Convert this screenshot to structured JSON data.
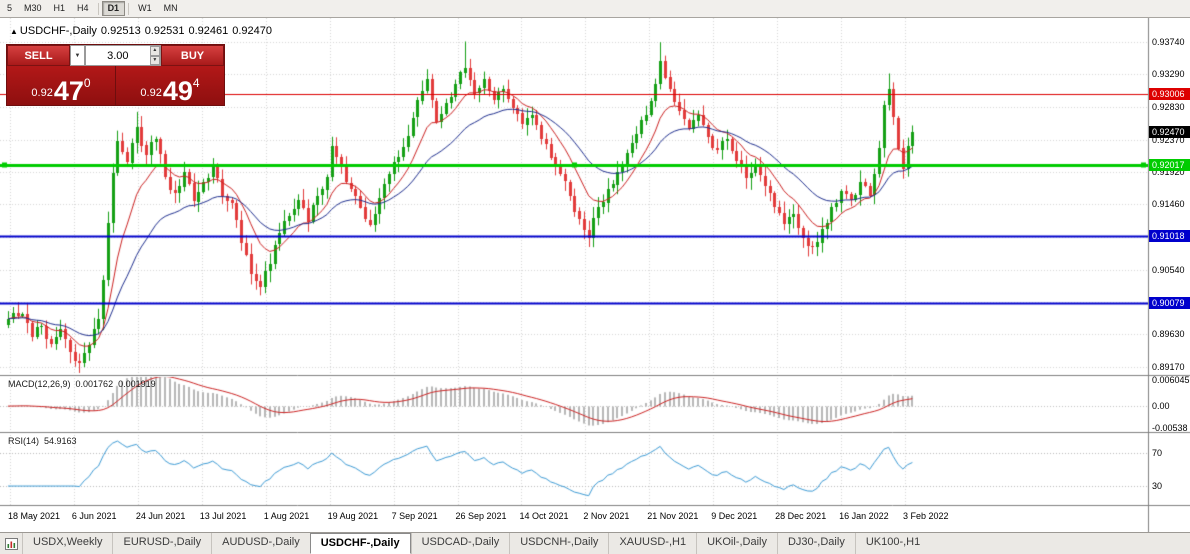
{
  "toolbar": {
    "buttons": [
      {
        "label": "5",
        "active": false
      },
      {
        "label": "M30",
        "active": false
      },
      {
        "label": "H1",
        "active": false
      },
      {
        "label": "H4",
        "active": false
      },
      {
        "label": "D1",
        "active": true
      },
      {
        "label": "W1",
        "active": false
      },
      {
        "label": "MN",
        "active": false
      }
    ]
  },
  "icons": {
    "title_marker": "▲",
    "dropdown": "▼",
    "spin_up": "▲",
    "spin_down": "▼"
  },
  "chart": {
    "title": {
      "symbol": "USDCHF-,Daily",
      "open": "0.92513",
      "high": "0.92531",
      "low": "0.92461",
      "close": "0.92470"
    },
    "trade_panel": {
      "sell_label": "SELL",
      "buy_label": "BUY",
      "volume": "3.00",
      "bid_base": "0.92",
      "bid_big": "47",
      "bid_sup": "0",
      "ask_base": "0.92",
      "ask_big": "49",
      "ask_sup": "4"
    },
    "price_axis": {
      "labels": [
        {
          "text": "0.93740",
          "value": 0.9374
        },
        {
          "text": "0.93290",
          "value": 0.9329
        },
        {
          "text": "0.92830",
          "value": 0.9283
        },
        {
          "text": "0.92370",
          "value": 0.9237
        },
        {
          "text": "0.91920",
          "value": 0.9192
        },
        {
          "text": "0.91460",
          "value": 0.9146
        },
        {
          "text": "0.90540",
          "value": 0.9054
        },
        {
          "text": "0.89630",
          "value": 0.8963
        },
        {
          "text": "0.89170",
          "value": 0.8917
        }
      ]
    },
    "levels": [
      {
        "text": "0.93006",
        "value": 0.93006,
        "color": "#dd0000",
        "width": 1,
        "selected": false
      },
      {
        "text": "0.92017",
        "value": 0.92017,
        "color": "#00cc00",
        "width": 3,
        "selected": true
      },
      {
        "text": "0.91018",
        "value": 0.91018,
        "color": "#0000cc",
        "width": 2,
        "selected": false
      },
      {
        "text": "0.90079",
        "value": 0.90079,
        "color": "#0000cc",
        "width": 2,
        "selected": false
      }
    ],
    "current_price": {
      "text": "0.92470",
      "value": 0.9247,
      "color": "#000000"
    }
  },
  "indicators": {
    "macd": {
      "label": "MACD(12,26,9)",
      "value_main": "0.001762",
      "value_signal": "0.001919",
      "axis": [
        {
          "text": "0.006045",
          "value": 0.006045
        },
        {
          "text": "0.00",
          "value": 0
        },
        {
          "text": "-0.00538",
          "value": -0.00538
        }
      ]
    },
    "rsi": {
      "label": "RSI(14)",
      "value": "54.9163",
      "axis": [
        {
          "text": "70",
          "value": 70
        },
        {
          "text": "30",
          "value": 30
        }
      ],
      "levels": [
        70,
        30
      ]
    }
  },
  "x_axis": {
    "dates": [
      "18 May 2021",
      "6 Jun 2021",
      "24 Jun 2021",
      "13 Jul 2021",
      "1 Aug 2021",
      "19 Aug 2021",
      "7 Sep 2021",
      "26 Sep 2021",
      "14 Oct 2021",
      "2 Nov 2021",
      "21 Nov 2021",
      "9 Dec 2021",
      "28 Dec 2021",
      "16 Jan 2022",
      "3 Feb 2022"
    ]
  },
  "tabs": {
    "items": [
      {
        "label": "USDX,Weekly",
        "active": false
      },
      {
        "label": "EURUSD-,Daily",
        "active": false
      },
      {
        "label": "AUDUSD-,Daily",
        "active": false
      },
      {
        "label": "USDCHF-,Daily",
        "active": true
      },
      {
        "label": "USDCAD-,Daily",
        "active": false
      },
      {
        "label": "USDCNH-,Daily",
        "active": false
      },
      {
        "label": "XAUUSD-,H1",
        "active": false
      },
      {
        "label": "UKOil-,Daily",
        "active": false
      },
      {
        "label": "DJ30-,Daily",
        "active": false
      },
      {
        "label": "UK100-,H1",
        "active": false
      }
    ]
  },
  "chart_data": {
    "type": "candlestick",
    "symbol": "USDCHF-",
    "timeframe": "Daily",
    "n_candles": 191,
    "seed": 20220203,
    "price_range": [
      0.8906,
      0.9408
    ],
    "macd_range": [
      -0.00538,
      0.006045
    ],
    "grid_prices": [
      0.9374,
      0.9329,
      0.9283,
      0.9237,
      0.9192,
      0.9146,
      0.91,
      0.9054,
      0.9008,
      0.8963,
      0.8917
    ],
    "colors": {
      "up": "#15a015",
      "down": "#e23b3b",
      "ma_fast": "#cc2222",
      "ma_slow": "#1f2f8f",
      "macd_hist": "#b8b8b8",
      "macd_signal": "#cc2222",
      "rsi_line": "#3d9bd5",
      "grid": "#d6d6d6"
    },
    "anchors": [
      [
        0,
        0.8985
      ],
      [
        3,
        0.8992
      ],
      [
        5,
        0.896
      ],
      [
        7,
        0.8975
      ],
      [
        9,
        0.895
      ],
      [
        11,
        0.897
      ],
      [
        13,
        0.8938
      ],
      [
        15,
        0.8922
      ],
      [
        17,
        0.8948
      ],
      [
        19,
        0.8985
      ],
      [
        20,
        0.904
      ],
      [
        21,
        0.912
      ],
      [
        22,
        0.919
      ],
      [
        23,
        0.9235
      ],
      [
        25,
        0.9205
      ],
      [
        27,
        0.9255
      ],
      [
        29,
        0.9215
      ],
      [
        31,
        0.9238
      ],
      [
        33,
        0.9185
      ],
      [
        35,
        0.9162
      ],
      [
        37,
        0.9192
      ],
      [
        39,
        0.915
      ],
      [
        41,
        0.9178
      ],
      [
        43,
        0.9198
      ],
      [
        45,
        0.9158
      ],
      [
        47,
        0.9148
      ],
      [
        49,
        0.9092
      ],
      [
        51,
        0.9048
      ],
      [
        53,
        0.903
      ],
      [
        55,
        0.9062
      ],
      [
        57,
        0.9105
      ],
      [
        59,
        0.913
      ],
      [
        61,
        0.9152
      ],
      [
        63,
        0.9122
      ],
      [
        65,
        0.9158
      ],
      [
        67,
        0.9185
      ],
      [
        68,
        0.9228
      ],
      [
        70,
        0.9198
      ],
      [
        72,
        0.9168
      ],
      [
        74,
        0.9142
      ],
      [
        76,
        0.9118
      ],
      [
        78,
        0.9155
      ],
      [
        80,
        0.9188
      ],
      [
        82,
        0.9212
      ],
      [
        84,
        0.9242
      ],
      [
        86,
        0.9292
      ],
      [
        88,
        0.9322
      ],
      [
        90,
        0.9262
      ],
      [
        92,
        0.9288
      ],
      [
        94,
        0.9315
      ],
      [
        96,
        0.9338
      ],
      [
        98,
        0.9302
      ],
      [
        100,
        0.9322
      ],
      [
        102,
        0.9292
      ],
      [
        104,
        0.9308
      ],
      [
        106,
        0.9282
      ],
      [
        108,
        0.9258
      ],
      [
        110,
        0.9272
      ],
      [
        112,
        0.9238
      ],
      [
        114,
        0.9212
      ],
      [
        116,
        0.9188
      ],
      [
        118,
        0.9158
      ],
      [
        120,
        0.9125
      ],
      [
        122,
        0.9098
      ],
      [
        124,
        0.9142
      ],
      [
        126,
        0.9168
      ],
      [
        128,
        0.9192
      ],
      [
        130,
        0.9218
      ],
      [
        132,
        0.9245
      ],
      [
        134,
        0.9272
      ],
      [
        136,
        0.9315
      ],
      [
        137,
        0.9348
      ],
      [
        139,
        0.9308
      ],
      [
        141,
        0.9278
      ],
      [
        143,
        0.9252
      ],
      [
        145,
        0.9272
      ],
      [
        147,
        0.9242
      ],
      [
        149,
        0.9222
      ],
      [
        151,
        0.9238
      ],
      [
        153,
        0.9208
      ],
      [
        155,
        0.9182
      ],
      [
        157,
        0.9202
      ],
      [
        159,
        0.9172
      ],
      [
        161,
        0.9142
      ],
      [
        163,
        0.9118
      ],
      [
        165,
        0.9132
      ],
      [
        167,
        0.9098
      ],
      [
        169,
        0.9085
      ],
      [
        171,
        0.9112
      ],
      [
        173,
        0.9142
      ],
      [
        175,
        0.9165
      ],
      [
        177,
        0.9152
      ],
      [
        179,
        0.9178
      ],
      [
        181,
        0.9158
      ],
      [
        183,
        0.9225
      ],
      [
        184,
        0.9285
      ],
      [
        185,
        0.9308
      ],
      [
        186,
        0.9268
      ],
      [
        187,
        0.9225
      ],
      [
        188,
        0.9195
      ],
      [
        189,
        0.9228
      ],
      [
        190,
        0.9247
      ]
    ],
    "wick_overrides": [
      {
        "i": 16,
        "low": 0.8917
      },
      {
        "i": 27,
        "high": 0.9276
      },
      {
        "i": 53,
        "low": 0.9018
      },
      {
        "i": 68,
        "high": 0.9241
      },
      {
        "i": 88,
        "high": 0.9336
      },
      {
        "i": 96,
        "high": 0.9375
      },
      {
        "i": 122,
        "low": 0.9086
      },
      {
        "i": 137,
        "high": 0.9374
      },
      {
        "i": 169,
        "low": 0.9076
      },
      {
        "i": 185,
        "high": 0.933
      }
    ]
  }
}
